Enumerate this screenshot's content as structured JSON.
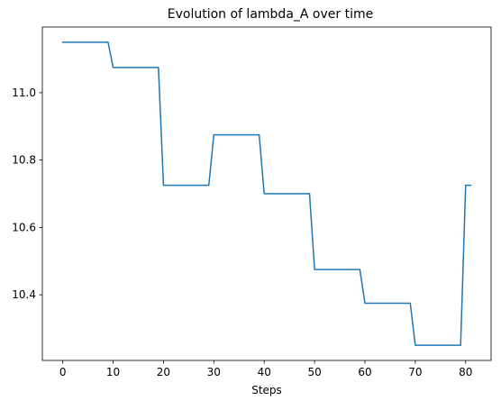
{
  "chart_data": {
    "type": "line",
    "title": "Evolution of lambda_A over time",
    "xlabel": "Steps",
    "ylabel": "",
    "xlim": [
      -4.05,
      85.05
    ],
    "ylim": [
      10.205,
      11.195
    ],
    "xticks": [
      0,
      10,
      20,
      30,
      40,
      50,
      60,
      70,
      80
    ],
    "xtick_labels": [
      "0",
      "10",
      "20",
      "30",
      "40",
      "50",
      "60",
      "70",
      "80"
    ],
    "yticks": [
      10.4,
      10.6,
      10.8,
      11.0
    ],
    "ytick_labels": [
      "10.4",
      "10.6",
      "10.8",
      "11.0"
    ],
    "grid": false,
    "legend": "none",
    "series": [
      {
        "color": "#1f77b4",
        "x": [
          0,
          9,
          10,
          19,
          20,
          29,
          30,
          39,
          40,
          49,
          50,
          59,
          60,
          69,
          70,
          79,
          80,
          81
        ],
        "y": [
          11.15,
          11.15,
          11.075,
          11.075,
          10.725,
          10.725,
          10.875,
          10.875,
          10.7,
          10.7,
          10.475,
          10.475,
          10.375,
          10.375,
          10.25,
          10.25,
          10.725,
          10.725
        ]
      }
    ]
  }
}
